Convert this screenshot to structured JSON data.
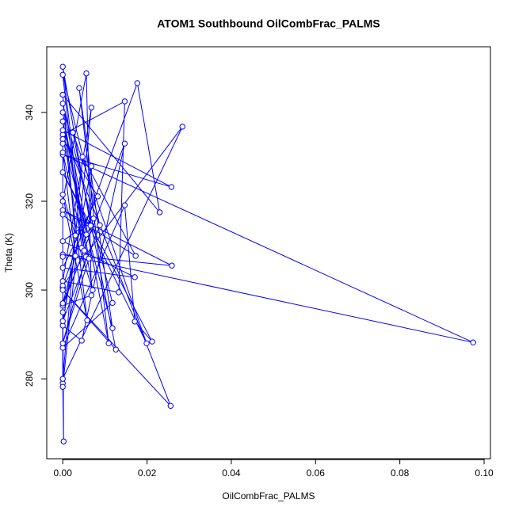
{
  "chart_data": {
    "type": "line",
    "title": "ATOM1 Southbound OilCombFrac_PALMS",
    "xlabel": "OilCombFrac_PALMS",
    "ylabel": "Theta (K)",
    "color": "#0000ff",
    "markers": true,
    "grid": false,
    "xlim": [
      -0.0038,
      0.1015
    ],
    "ylim": [
      262,
      354.8
    ],
    "xticks": [
      {
        "value": 0,
        "label": "0.00"
      },
      {
        "value": 0.02,
        "label": "0.02"
      },
      {
        "value": 0.04,
        "label": "0.04"
      },
      {
        "value": 0.06,
        "label": "0.06"
      },
      {
        "value": 0.08,
        "label": "0.08"
      },
      {
        "value": 0.1,
        "label": "0.10"
      }
    ],
    "yticks": [
      280,
      300,
      320,
      340
    ],
    "x": [
      0,
      0.0002,
      0,
      0,
      0.0147,
      0.0133,
      0,
      0.0068,
      0,
      0,
      0.0056,
      0.0068,
      0,
      0.0147,
      0.0045,
      0,
      0.003,
      0,
      0.023,
      0.0177,
      0,
      0.0284,
      0,
      0.0047,
      0.0173,
      0,
      0.0259,
      0,
      0.0974,
      0,
      0.0258,
      0,
      0.0256,
      0,
      0.0126,
      0.0024,
      0.0199,
      0,
      0.0212,
      0.0171,
      0.0147,
      0,
      0.0118,
      0,
      0.0109,
      0.0039,
      0.0118,
      0,
      0.0083,
      0,
      0.0171,
      0,
      0.0073,
      0.0045,
      0,
      0.0088,
      0,
      0.0068,
      0.0066,
      0,
      0.0051,
      0,
      0.003,
      0,
      0.0055,
      0,
      0.0062,
      0,
      0.0071,
      0,
      0.0058,
      0,
      0.0056,
      0,
      0,
      0,
      0
    ],
    "values": [
      300.5,
      265.9,
      279,
      335,
      342.5,
      299.5,
      302,
      341.1,
      278.2,
      320,
      348.8,
      298.8,
      296.5,
      333.0,
      288.6,
      292,
      312.3,
      344,
      317.5,
      346.6,
      301,
      336.8,
      280,
      330.0,
      307.7,
      318,
      305.5,
      308,
      288.2,
      330.5,
      323.2,
      336,
      273.9,
      300,
      286.6,
      335.5,
      288.0,
      326.5,
      288.4,
      292.9,
      319.1,
      287,
      297.1,
      342,
      288.0,
      345.5,
      291.4,
      334,
      321.1,
      305,
      302.9,
      311,
      316.1,
      309.5,
      348.5,
      314.6,
      293,
      327.9,
      314.5,
      350.3,
      308.9,
      297,
      307.7,
      331,
      307.5,
      288,
      307.1,
      340,
      300.0,
      321.5,
      293.2,
      338,
      312.5,
      317,
      295,
      307.5,
      333
    ]
  }
}
